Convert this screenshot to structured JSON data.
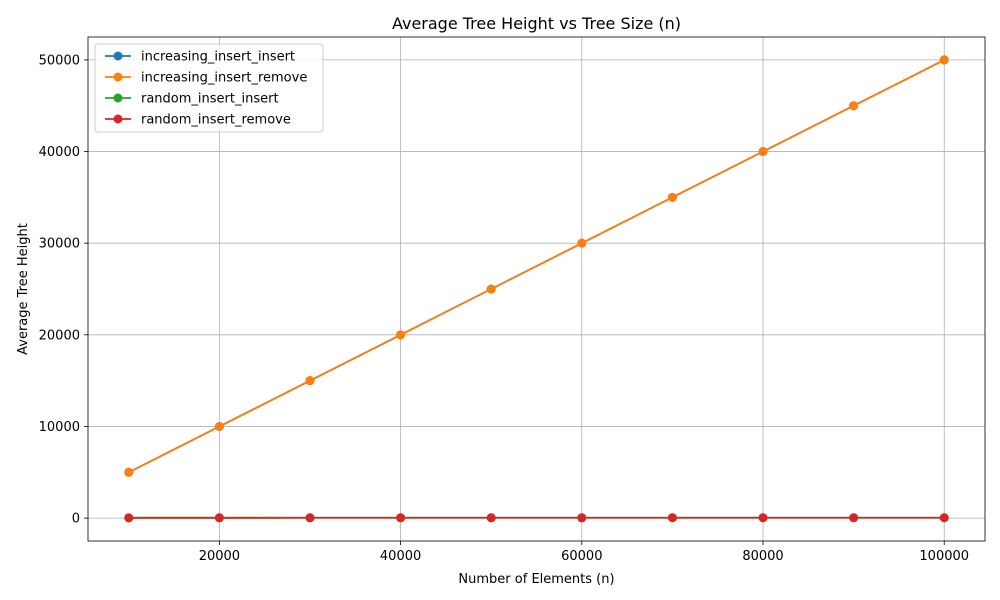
{
  "chart_data": {
    "type": "line",
    "title": "Average Tree Height vs Tree Size (n)",
    "xlabel": "Number of Elements (n)",
    "ylabel": "Average Tree Height",
    "x": [
      10000,
      20000,
      30000,
      40000,
      50000,
      60000,
      70000,
      80000,
      90000,
      100000
    ],
    "xlim": [
      5500,
      104500
    ],
    "ylim": [
      -2500,
      52500
    ],
    "xticks": [
      20000,
      40000,
      60000,
      80000,
      100000
    ],
    "yticks": [
      0,
      10000,
      20000,
      30000,
      40000,
      50000
    ],
    "grid": true,
    "legend_position": "upper-left",
    "series": [
      {
        "name": "increasing_insert_insert",
        "color": "#1f77b4",
        "values": [
          5000,
          10000,
          15000,
          20000,
          25000,
          30000,
          35000,
          40000,
          45000,
          50000
        ]
      },
      {
        "name": "increasing_insert_remove",
        "color": "#ff7f0e",
        "values": [
          5000,
          10000,
          15000,
          20000,
          25000,
          30000,
          35000,
          40000,
          45000,
          50000
        ]
      },
      {
        "name": "random_insert_insert",
        "color": "#2ca02c",
        "values": [
          30,
          32,
          34,
          35,
          36,
          36,
          37,
          37,
          38,
          38
        ]
      },
      {
        "name": "random_insert_remove",
        "color": "#d62728",
        "values": [
          30,
          32,
          34,
          35,
          36,
          36,
          37,
          37,
          38,
          38
        ]
      }
    ]
  }
}
